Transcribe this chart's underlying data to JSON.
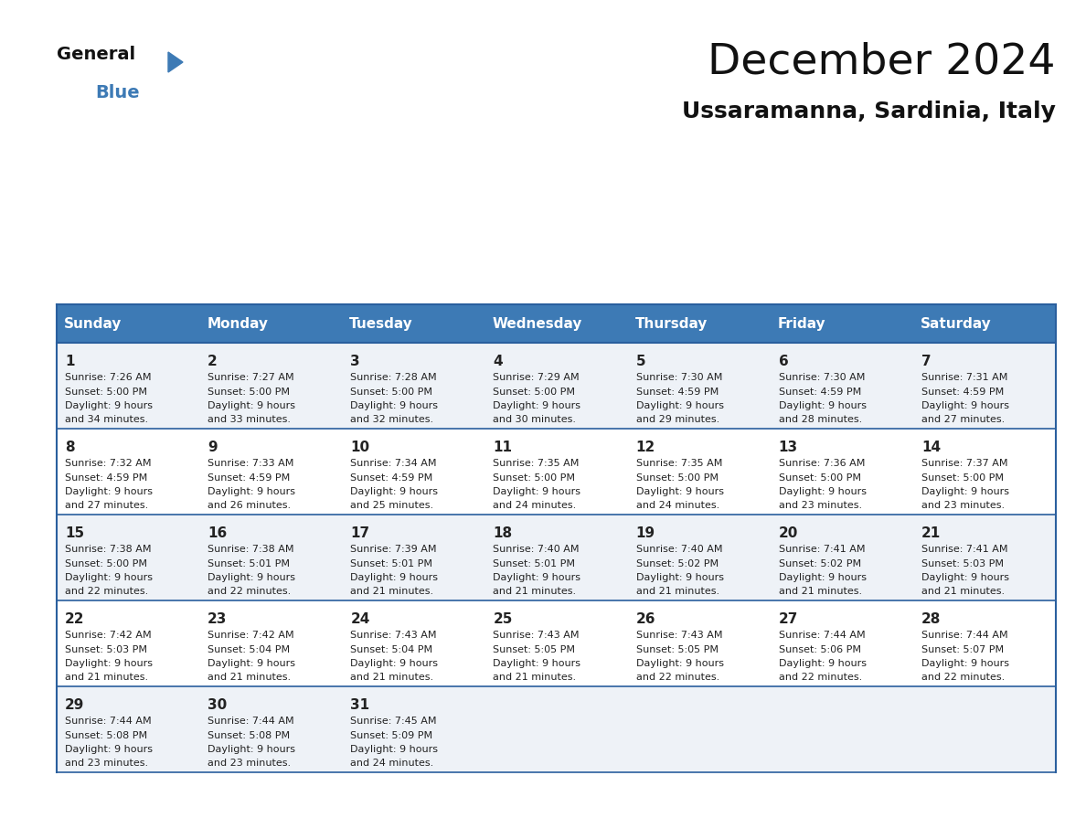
{
  "title": "December 2024",
  "subtitle": "Ussaramanna, Sardinia, Italy",
  "days_of_week": [
    "Sunday",
    "Monday",
    "Tuesday",
    "Wednesday",
    "Thursday",
    "Friday",
    "Saturday"
  ],
  "header_bg": "#3d7ab5",
  "header_text": "#ffffff",
  "row_bg_odd": "#eef2f7",
  "row_bg_even": "#ffffff",
  "cell_text_color": "#222222",
  "border_color": "#2a5f9e",
  "title_fontsize": 34,
  "subtitle_fontsize": 18,
  "header_fontsize": 11,
  "day_num_fontsize": 11,
  "cell_fontsize": 8.0,
  "calendar": [
    [
      {
        "day": 1,
        "sunrise": "7:26 AM",
        "sunset": "5:00 PM",
        "daylight": "9 hours and 34 minutes."
      },
      {
        "day": 2,
        "sunrise": "7:27 AM",
        "sunset": "5:00 PM",
        "daylight": "9 hours and 33 minutes."
      },
      {
        "day": 3,
        "sunrise": "7:28 AM",
        "sunset": "5:00 PM",
        "daylight": "9 hours and 32 minutes."
      },
      {
        "day": 4,
        "sunrise": "7:29 AM",
        "sunset": "5:00 PM",
        "daylight": "9 hours and 30 minutes."
      },
      {
        "day": 5,
        "sunrise": "7:30 AM",
        "sunset": "4:59 PM",
        "daylight": "9 hours and 29 minutes."
      },
      {
        "day": 6,
        "sunrise": "7:30 AM",
        "sunset": "4:59 PM",
        "daylight": "9 hours and 28 minutes."
      },
      {
        "day": 7,
        "sunrise": "7:31 AM",
        "sunset": "4:59 PM",
        "daylight": "9 hours and 27 minutes."
      }
    ],
    [
      {
        "day": 8,
        "sunrise": "7:32 AM",
        "sunset": "4:59 PM",
        "daylight": "9 hours and 27 minutes."
      },
      {
        "day": 9,
        "sunrise": "7:33 AM",
        "sunset": "4:59 PM",
        "daylight": "9 hours and 26 minutes."
      },
      {
        "day": 10,
        "sunrise": "7:34 AM",
        "sunset": "4:59 PM",
        "daylight": "9 hours and 25 minutes."
      },
      {
        "day": 11,
        "sunrise": "7:35 AM",
        "sunset": "5:00 PM",
        "daylight": "9 hours and 24 minutes."
      },
      {
        "day": 12,
        "sunrise": "7:35 AM",
        "sunset": "5:00 PM",
        "daylight": "9 hours and 24 minutes."
      },
      {
        "day": 13,
        "sunrise": "7:36 AM",
        "sunset": "5:00 PM",
        "daylight": "9 hours and 23 minutes."
      },
      {
        "day": 14,
        "sunrise": "7:37 AM",
        "sunset": "5:00 PM",
        "daylight": "9 hours and 23 minutes."
      }
    ],
    [
      {
        "day": 15,
        "sunrise": "7:38 AM",
        "sunset": "5:00 PM",
        "daylight": "9 hours and 22 minutes."
      },
      {
        "day": 16,
        "sunrise": "7:38 AM",
        "sunset": "5:01 PM",
        "daylight": "9 hours and 22 minutes."
      },
      {
        "day": 17,
        "sunrise": "7:39 AM",
        "sunset": "5:01 PM",
        "daylight": "9 hours and 21 minutes."
      },
      {
        "day": 18,
        "sunrise": "7:40 AM",
        "sunset": "5:01 PM",
        "daylight": "9 hours and 21 minutes."
      },
      {
        "day": 19,
        "sunrise": "7:40 AM",
        "sunset": "5:02 PM",
        "daylight": "9 hours and 21 minutes."
      },
      {
        "day": 20,
        "sunrise": "7:41 AM",
        "sunset": "5:02 PM",
        "daylight": "9 hours and 21 minutes."
      },
      {
        "day": 21,
        "sunrise": "7:41 AM",
        "sunset": "5:03 PM",
        "daylight": "9 hours and 21 minutes."
      }
    ],
    [
      {
        "day": 22,
        "sunrise": "7:42 AM",
        "sunset": "5:03 PM",
        "daylight": "9 hours and 21 minutes."
      },
      {
        "day": 23,
        "sunrise": "7:42 AM",
        "sunset": "5:04 PM",
        "daylight": "9 hours and 21 minutes."
      },
      {
        "day": 24,
        "sunrise": "7:43 AM",
        "sunset": "5:04 PM",
        "daylight": "9 hours and 21 minutes."
      },
      {
        "day": 25,
        "sunrise": "7:43 AM",
        "sunset": "5:05 PM",
        "daylight": "9 hours and 21 minutes."
      },
      {
        "day": 26,
        "sunrise": "7:43 AM",
        "sunset": "5:05 PM",
        "daylight": "9 hours and 22 minutes."
      },
      {
        "day": 27,
        "sunrise": "7:44 AM",
        "sunset": "5:06 PM",
        "daylight": "9 hours and 22 minutes."
      },
      {
        "day": 28,
        "sunrise": "7:44 AM",
        "sunset": "5:07 PM",
        "daylight": "9 hours and 22 minutes."
      }
    ],
    [
      {
        "day": 29,
        "sunrise": "7:44 AM",
        "sunset": "5:08 PM",
        "daylight": "9 hours and 23 minutes."
      },
      {
        "day": 30,
        "sunrise": "7:44 AM",
        "sunset": "5:08 PM",
        "daylight": "9 hours and 23 minutes."
      },
      {
        "day": 31,
        "sunrise": "7:45 AM",
        "sunset": "5:09 PM",
        "daylight": "9 hours and 24 minutes."
      },
      null,
      null,
      null,
      null
    ]
  ]
}
